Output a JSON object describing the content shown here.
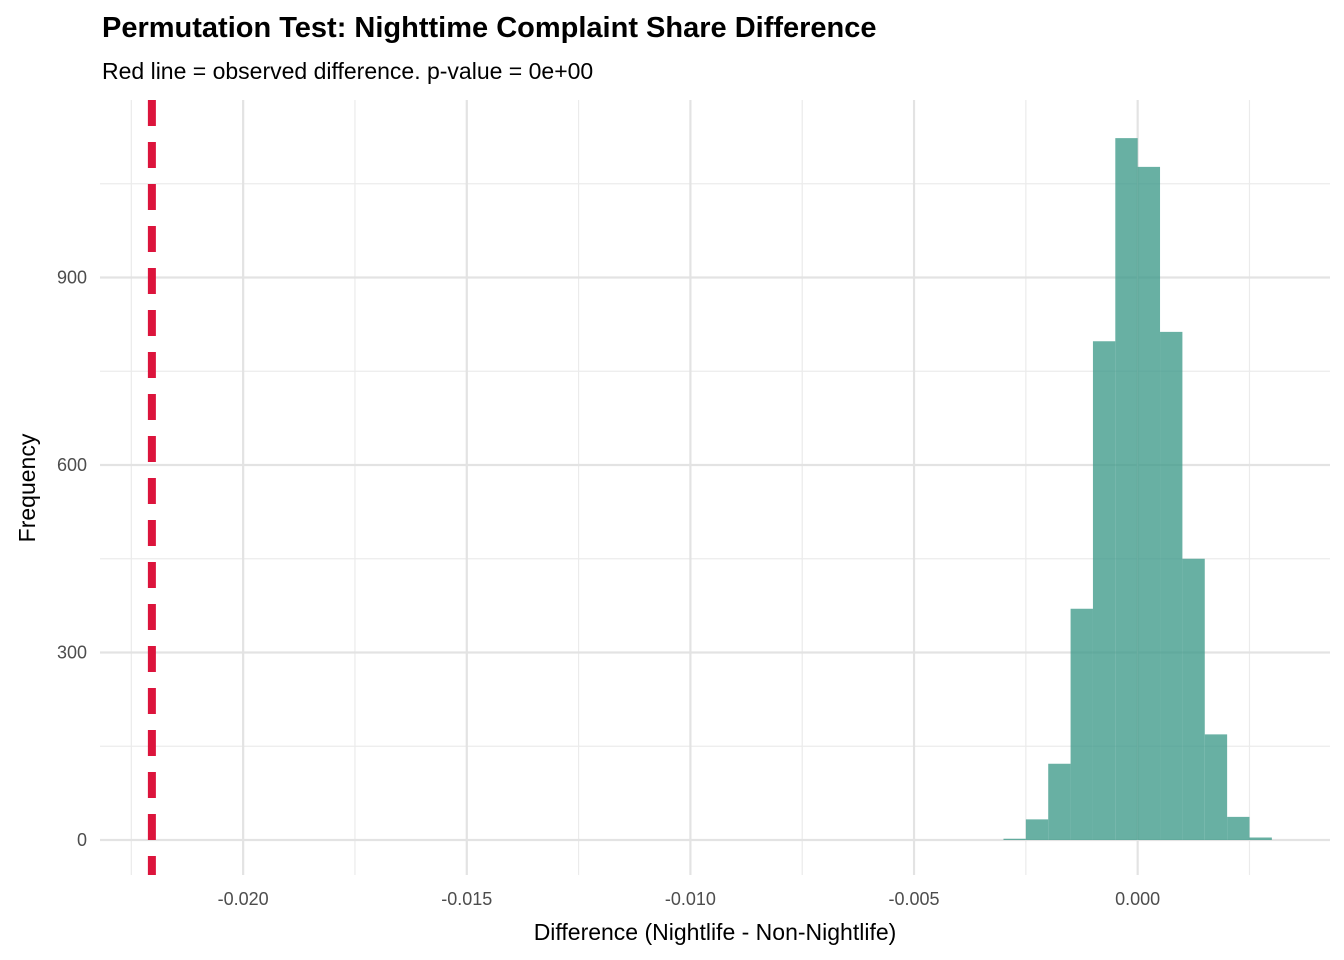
{
  "chart_data": {
    "type": "bar",
    "title": "Permutation Test: Nighttime Complaint Share Difference",
    "subtitle": "Red line = observed difference. p-value = 0e+00",
    "xlabel": "Difference (Nightlife - Non-Nightlife)",
    "ylabel": "Frequency",
    "xlim": [
      -0.0232,
      0.0043
    ],
    "ylim": [
      -56,
      1184
    ],
    "xticks": [
      -0.02,
      -0.015,
      -0.01,
      -0.005,
      0.0
    ],
    "xtick_labels": [
      "-0.020",
      "-0.015",
      "-0.010",
      "-0.005",
      "0.000"
    ],
    "yticks": [
      0,
      300,
      600,
      900
    ],
    "ytick_labels": [
      "0",
      "300",
      "600",
      "900"
    ],
    "grid": true,
    "bin_width": 0.0005,
    "bin_centers": [
      -0.00275,
      -0.00225,
      -0.00175,
      -0.00125,
      -0.00075,
      -0.00025,
      0.00025,
      0.00075,
      0.00125,
      0.00175,
      0.00225,
      0.00275
    ],
    "values": [
      2,
      33,
      122,
      370,
      798,
      1123,
      1077,
      813,
      450,
      169,
      37,
      4
    ],
    "observed_difference": -0.02204,
    "colors": {
      "bars": "#3d9a89",
      "observed_line": "#dc143c"
    }
  }
}
